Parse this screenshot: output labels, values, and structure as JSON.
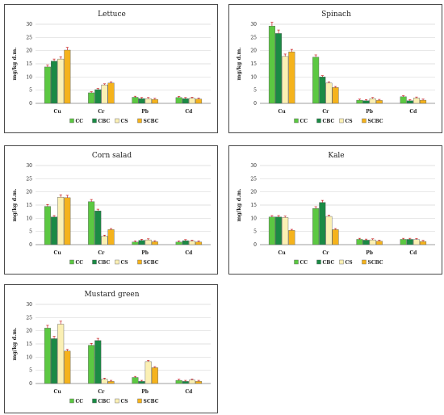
{
  "colors": {
    "CC": "#5cc842",
    "CBC": "#1b8a45",
    "CS": "#fbf0b4",
    "SCBC": "#f5b31c",
    "grid": "#d9d9d9",
    "axis": "#7f7f7f",
    "error": "#c00000"
  },
  "chart_data": [
    {
      "type": "bar",
      "title": "Lettuce",
      "ylabel": "mg/kg d.m.",
      "ylim": [
        0,
        30
      ],
      "yticks": [
        0,
        5,
        10,
        15,
        20,
        25,
        30
      ],
      "categories": [
        "Cu",
        "Cr",
        "Pb",
        "Cd"
      ],
      "series": [
        {
          "name": "CC",
          "values": [
            13.8,
            4.0,
            2.3,
            2.2
          ]
        },
        {
          "name": "CBC",
          "values": [
            16.0,
            5.2,
            1.8,
            1.8
          ]
        },
        {
          "name": "CS",
          "values": [
            16.8,
            7.0,
            1.8,
            1.9
          ]
        },
        {
          "name": "SCBC",
          "values": [
            20.2,
            7.7,
            1.5,
            1.6
          ]
        }
      ],
      "legend": "bottom"
    },
    {
      "type": "bar",
      "title": "Spinach",
      "ylabel": "mg/kg d.m.",
      "ylim": [
        0,
        30
      ],
      "yticks": [
        0,
        5,
        10,
        15,
        20,
        25,
        30
      ],
      "categories": [
        "Cu",
        "Cr",
        "Pb",
        "Cd"
      ],
      "series": [
        {
          "name": "CC",
          "values": [
            29.3,
            17.5,
            1.2,
            2.5
          ]
        },
        {
          "name": "CBC",
          "values": [
            26.5,
            10.0,
            1.0,
            1.0
          ]
        },
        {
          "name": "CS",
          "values": [
            17.8,
            7.7,
            1.8,
            2.0
          ]
        },
        {
          "name": "SCBC",
          "values": [
            19.5,
            6.0,
            1.1,
            1.2
          ]
        }
      ],
      "legend": "bottom"
    },
    {
      "type": "bar",
      "title": "Corn salad",
      "ylabel": "mg/kg d.m.",
      "ylim": [
        0,
        30
      ],
      "yticks": [
        0,
        5,
        10,
        15,
        20,
        25,
        30
      ],
      "categories": [
        "Cu",
        "Cr",
        "Pb",
        "Cd"
      ],
      "series": [
        {
          "name": "CC",
          "values": [
            14.5,
            16.3,
            1.0,
            1.0
          ]
        },
        {
          "name": "CBC",
          "values": [
            10.5,
            12.8,
            1.6,
            1.5
          ]
        },
        {
          "name": "CS",
          "values": [
            18.0,
            3.2,
            1.8,
            1.3
          ]
        },
        {
          "name": "SCBC",
          "values": [
            17.8,
            5.7,
            1.1,
            1.0
          ]
        }
      ],
      "legend": "bottom"
    },
    {
      "type": "bar",
      "title": "Kale",
      "ylabel": "mg/kg d.m.",
      "ylim": [
        0,
        30
      ],
      "yticks": [
        0,
        5,
        10,
        15,
        20,
        25,
        30
      ],
      "categories": [
        "Cu",
        "Cr",
        "Pb",
        "Cd"
      ],
      "series": [
        {
          "name": "CC",
          "values": [
            10.5,
            13.7,
            2.0,
            2.0
          ]
        },
        {
          "name": "CBC",
          "values": [
            10.5,
            16.0,
            1.7,
            2.0
          ]
        },
        {
          "name": "CS",
          "values": [
            10.3,
            10.7,
            1.8,
            1.9
          ]
        },
        {
          "name": "SCBC",
          "values": [
            5.4,
            5.7,
            1.3,
            1.2
          ]
        }
      ],
      "legend": "bottom"
    },
    {
      "type": "bar",
      "title": "Mustard green",
      "ylabel": "mg/kg d.m.",
      "ylim": [
        0,
        30
      ],
      "yticks": [
        0,
        5,
        10,
        15,
        20,
        25,
        30
      ],
      "categories": [
        "Cu",
        "Cr",
        "Pb",
        "Cd"
      ],
      "series": [
        {
          "name": "CC",
          "values": [
            21.0,
            14.5,
            2.3,
            1.2
          ]
        },
        {
          "name": "CBC",
          "values": [
            17.0,
            16.3,
            0.8,
            0.8
          ]
        },
        {
          "name": "CS",
          "values": [
            22.5,
            1.6,
            8.3,
            1.3
          ]
        },
        {
          "name": "SCBC",
          "values": [
            12.3,
            0.8,
            6.0,
            0.8
          ]
        }
      ],
      "legend": "bottom"
    }
  ]
}
